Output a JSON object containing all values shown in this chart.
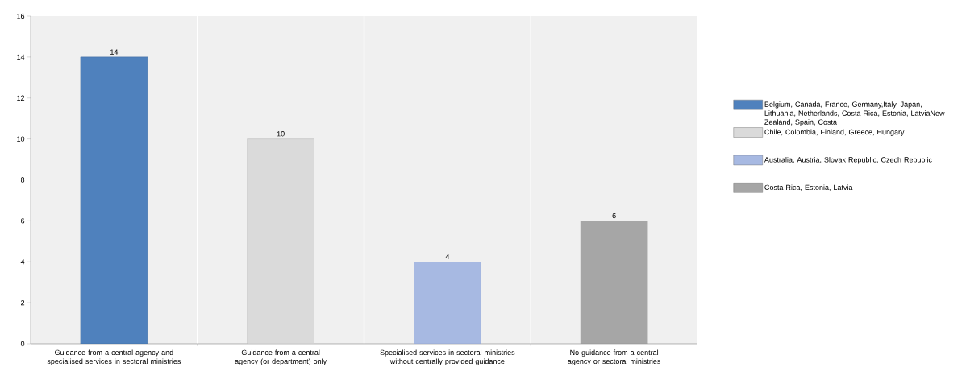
{
  "chart_data": {
    "type": "bar",
    "categories": [
      "Guidance from a central agency and specialised services in sectoral ministries",
      "Guidance from a central agency (or department) only",
      "Specialised services in sectoral ministries without centrally provided guidance",
      "No guidance from a central agency or sectoral ministries"
    ],
    "series": [
      {
        "name": "Belgium, Canada, France, Germany,Italy, Japan, Lithuania, Netherlands, Costa Rica, Estonia, LatviaNew Zealand, Spain, Costa",
        "color": "#4f81bd",
        "values": [
          14,
          null,
          null,
          null
        ]
      },
      {
        "name": "Chile, Colombia, Finland, Greece, Hungary",
        "color": "#dadada",
        "values": [
          null,
          10,
          null,
          null
        ]
      },
      {
        "name": "Australia, Austria, Slovak Republic, Czech Republic",
        "color": "#a7b9e2",
        "values": [
          null,
          null,
          4,
          null
        ]
      },
      {
        "name": "Costa Rica, Estonia, Latvia",
        "color": "#a6a6a6",
        "values": [
          null,
          null,
          null,
          6
        ]
      }
    ],
    "ylim": [
      0,
      16
    ],
    "yticks": [
      0,
      2,
      4,
      6,
      8,
      10,
      12,
      14,
      16
    ],
    "data_labels": true,
    "legend": "right"
  }
}
